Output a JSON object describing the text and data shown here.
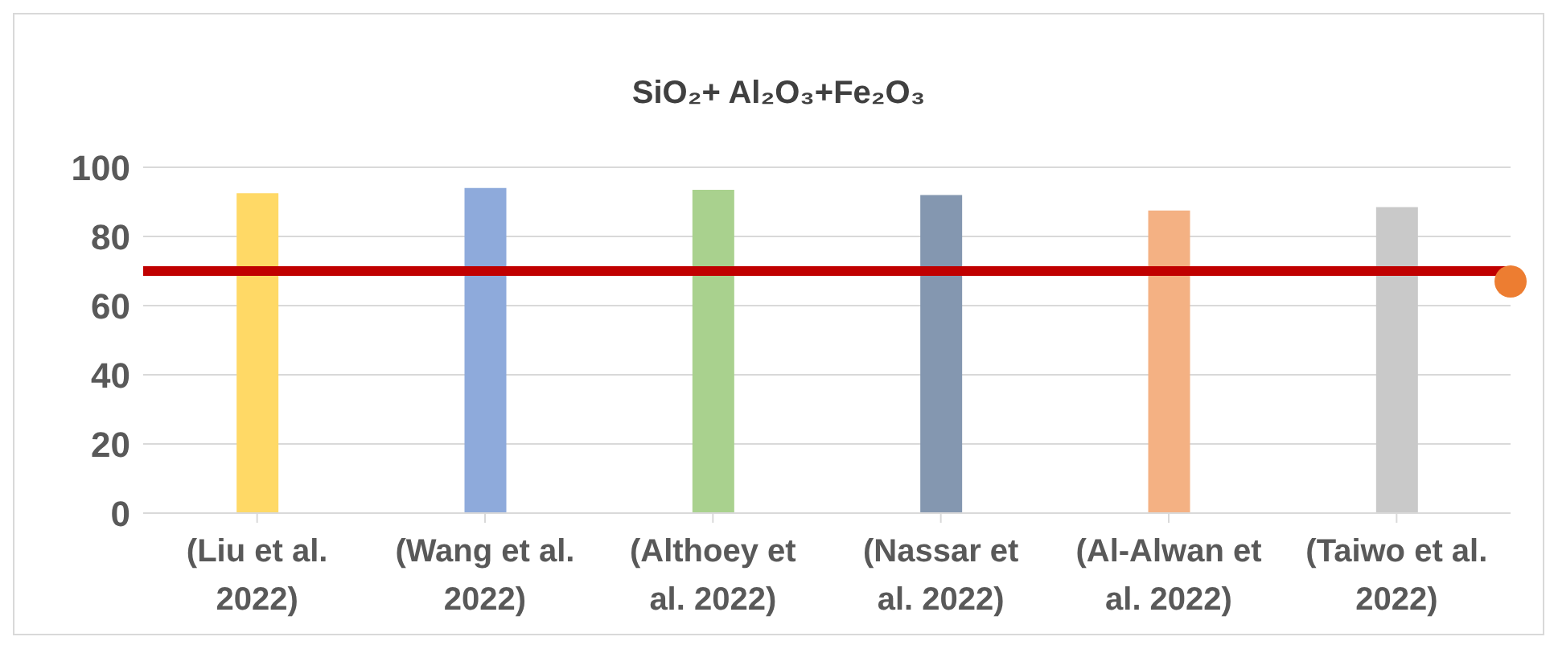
{
  "chart_data": {
    "type": "bar",
    "title": "SiO₂+ Al₂O₃+Fe₂O₃",
    "categories": [
      "(Liu et  al. 2022)",
      "(Wang et al. 2022)",
      "(Althoey et al. 2022)",
      "(Nassar et al. 2022)",
      "(Al-Alwan et al. 2022)",
      "(Taiwo et al. 2022)"
    ],
    "values": [
      92.5,
      94,
      93.5,
      92,
      87.5,
      88.5
    ],
    "colors": [
      "#ffd966",
      "#8eaadb",
      "#a9d18e",
      "#8497b0",
      "#f4b183",
      "#c9c9c9"
    ],
    "ylim": [
      0,
      100
    ],
    "yticks": [
      0,
      20,
      40,
      60,
      80,
      100
    ],
    "grid": "y",
    "ref_lines": [
      {
        "axis": "y",
        "value": 70,
        "color": "#c00000"
      }
    ]
  }
}
